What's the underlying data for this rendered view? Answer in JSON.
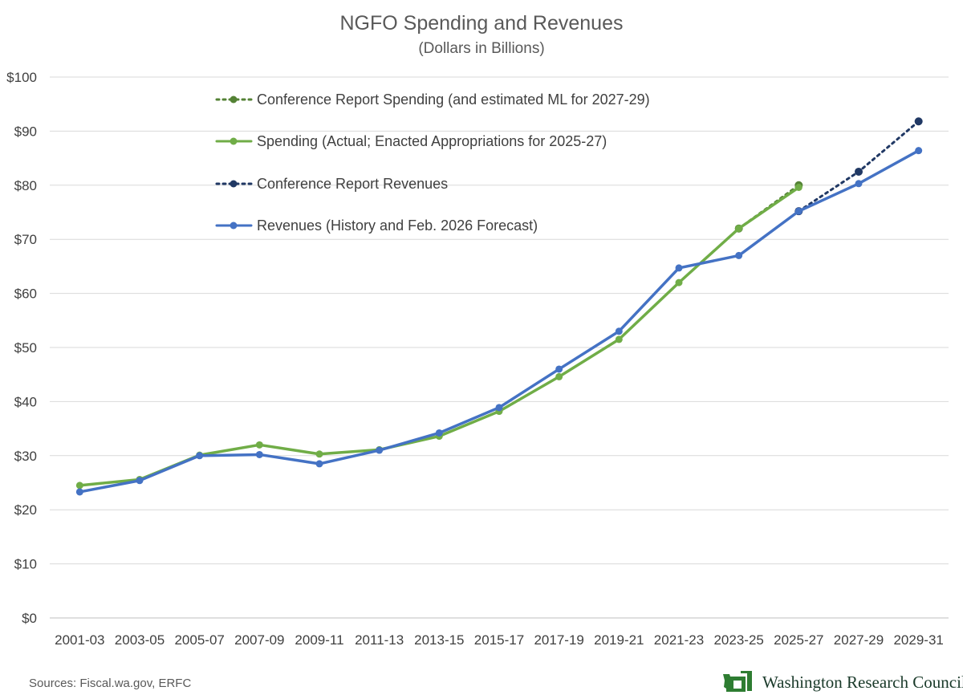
{
  "chart_data": {
    "type": "line",
    "title": "NGFO Spending and Revenues",
    "subtitle": "(Dollars in Billions)",
    "categories": [
      "2001-03",
      "2003-05",
      "2005-07",
      "2007-09",
      "2009-11",
      "2011-13",
      "2013-15",
      "2015-17",
      "2017-19",
      "2019-21",
      "2021-23",
      "2023-25",
      "2025-27",
      "2027-29",
      "2029-31"
    ],
    "y_ticks": [
      "$0",
      "$10",
      "$20",
      "$30",
      "$40",
      "$50",
      "$60",
      "$70",
      "$80",
      "$90",
      "$100"
    ],
    "ylim": [
      0,
      100
    ],
    "grid": true,
    "legend_position": "top-left inside",
    "series": [
      {
        "name": "Conference Report Spending (and estimated ML for 2027-29)",
        "style": "dotted",
        "color": "#548235",
        "values": [
          null,
          null,
          null,
          null,
          null,
          null,
          null,
          null,
          null,
          null,
          null,
          72.0,
          80.0,
          null,
          null
        ]
      },
      {
        "name": "Spending (Actual; Enacted Appropriations for 2025-27)",
        "style": "solid",
        "color": "#70AD47",
        "values": [
          24.5,
          25.6,
          30.1,
          32.0,
          30.3,
          31.1,
          33.6,
          38.2,
          44.6,
          51.5,
          62.0,
          72.0,
          79.6,
          null,
          null
        ]
      },
      {
        "name": "Conference Report Revenues",
        "style": "dotted",
        "color": "#203864",
        "values": [
          null,
          null,
          null,
          null,
          null,
          null,
          null,
          null,
          null,
          null,
          null,
          null,
          75.2,
          82.5,
          91.8
        ]
      },
      {
        "name": "Revenues (History and Feb. 2026 Forecast)",
        "style": "solid",
        "color": "#4472C4",
        "values": [
          23.3,
          25.4,
          30.0,
          30.2,
          28.5,
          31.0,
          34.2,
          38.9,
          46.0,
          53.0,
          64.7,
          67.0,
          75.2,
          80.3,
          86.4
        ]
      }
    ]
  },
  "footer": {
    "source": "Sources: Fiscal.wa.gov, ERFC",
    "logo_text": "Washington Research Council",
    "logo_color": "#2E7D32"
  }
}
